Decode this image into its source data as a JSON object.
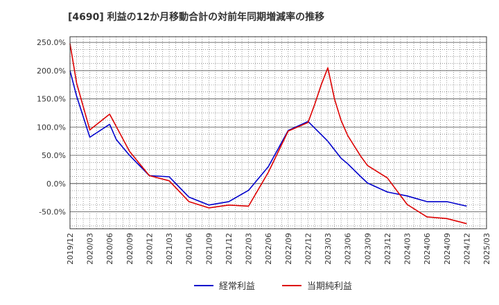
{
  "chart_data": {
    "type": "line",
    "title": "[4690]  利益の12か月移動合計の対前年同期増減率の推移",
    "ylim": [
      -80,
      260
    ],
    "yticks": [
      250,
      200,
      150,
      100,
      50,
      0,
      -50
    ],
    "ytick_labels": [
      "250.0%",
      "200.0%",
      "150.0%",
      "100.0%",
      "50.0%",
      "0.0%",
      "-50.0%"
    ],
    "x_categories": [
      "2019/12",
      "2020/03",
      "2020/06",
      "2020/09",
      "2020/12",
      "2021/03",
      "2021/06",
      "2021/09",
      "2021/12",
      "2022/03",
      "2022/06",
      "2022/09",
      "2022/12",
      "2023/03",
      "2023/06",
      "2023/09",
      "2023/12",
      "2024/03",
      "2024/06",
      "2024/09",
      "2024/12",
      "2025/03"
    ],
    "grid": true,
    "legend_position": "bottom-center",
    "series": [
      {
        "name": "経常利益",
        "color": "#0000cc",
        "x": [
          "2019/12",
          "2020/01",
          "2020/03",
          "2020/06",
          "2020/07",
          "2020/09",
          "2020/12",
          "2021/03",
          "2021/06",
          "2021/09",
          "2021/12",
          "2022/03",
          "2022/06",
          "2022/09",
          "2022/12",
          "2023/03",
          "2023/05",
          "2023/06",
          "2023/08",
          "2023/09",
          "2023/12",
          "2024/03",
          "2024/06",
          "2024/09",
          "2024/12"
        ],
        "values": [
          200,
          155,
          82,
          105,
          78,
          50,
          14,
          12,
          -24,
          -38,
          -32,
          -12,
          30,
          94,
          110,
          75,
          45,
          35,
          12,
          1,
          -15,
          -22,
          -32,
          -32,
          -40
        ]
      },
      {
        "name": "当期純利益",
        "color": "#dd0000",
        "x": [
          "2019/12",
          "2020/01",
          "2020/03",
          "2020/06",
          "2020/09",
          "2020/12",
          "2021/03",
          "2021/06",
          "2021/09",
          "2021/12",
          "2022/03",
          "2022/06",
          "2022/09",
          "2022/12",
          "2023/01",
          "2023/02",
          "2023/03",
          "2023/04",
          "2023/05",
          "2023/06",
          "2023/08",
          "2023/09",
          "2023/12",
          "2024/03",
          "2024/06",
          "2024/09",
          "2024/12"
        ],
        "values": [
          248,
          178,
          95,
          123,
          57,
          14,
          5,
          -32,
          -43,
          -38,
          -40,
          20,
          93,
          108,
          140,
          175,
          205,
          150,
          112,
          85,
          48,
          32,
          10,
          -37,
          -59,
          -62,
          -71
        ]
      }
    ]
  }
}
